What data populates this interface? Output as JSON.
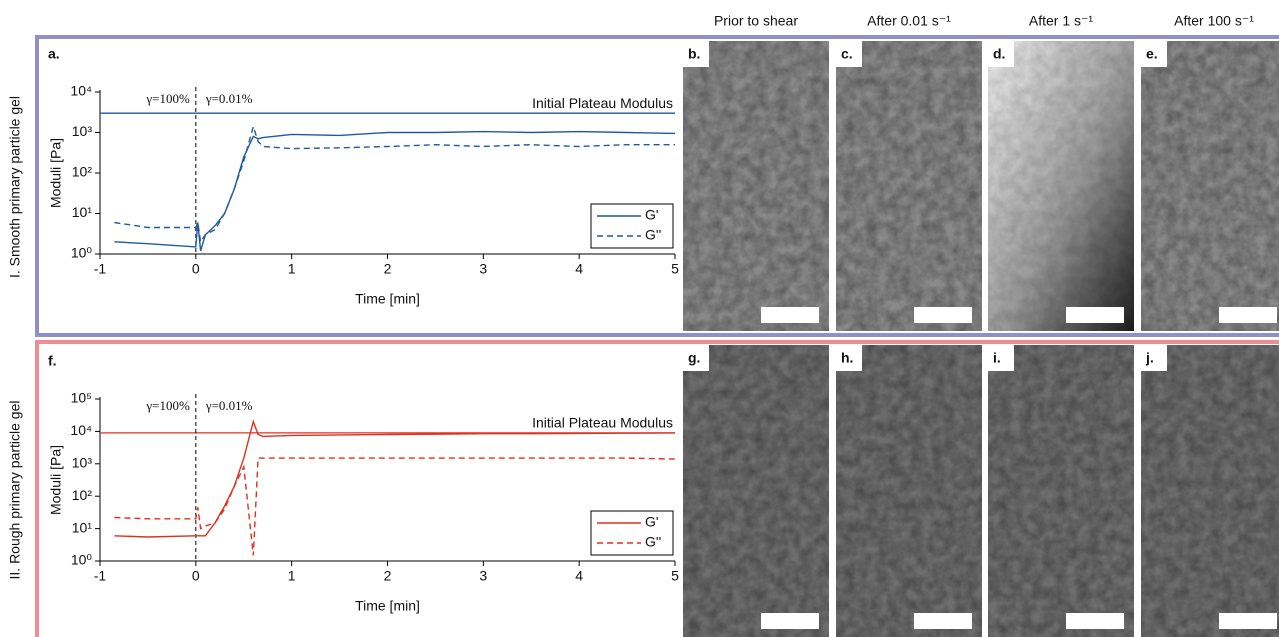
{
  "chart_data": [
    {
      "type": "line",
      "panel": "a.",
      "xlabel": "Time [min]",
      "ylabel": "Moduli [Pa]",
      "log_y": true,
      "xlim": [
        -1,
        5
      ],
      "xticks": [
        -1,
        0,
        1,
        2,
        3,
        4,
        5
      ],
      "ylim": [
        1,
        10000
      ],
      "yticks": [
        {
          "value": 1,
          "label": "10⁰"
        },
        {
          "value": 10,
          "label": "10¹"
        },
        {
          "value": 100,
          "label": "10²"
        },
        {
          "value": 1000,
          "label": "10³"
        },
        {
          "value": 10000,
          "label": "10⁴"
        }
      ],
      "reference_line": {
        "value": 3000,
        "label": "Initial Plateau Modulus"
      },
      "vline": 0,
      "annotations": [
        "γ=100%",
        "γ=0.01%"
      ],
      "legend": "lower right",
      "x": [
        -0.85,
        -0.5,
        0,
        0.02,
        0.05,
        0.1,
        0.2,
        0.3,
        0.4,
        0.5,
        0.6,
        0.65,
        0.7,
        1.0,
        1.5,
        2.0,
        2.5,
        3.0,
        3.5,
        4.0,
        4.5,
        5.0
      ],
      "series": [
        {
          "name": "G'",
          "color": "#1f5a9a",
          "dash": "solid",
          "values": [
            2,
            1.8,
            1.5,
            6,
            1.2,
            3,
            5,
            10,
            40,
            250,
            800,
            700,
            750,
            900,
            850,
            1000,
            1000,
            1050,
            1000,
            1050,
            1000,
            950
          ]
        },
        {
          "name": "G''",
          "color": "#1f5a9a",
          "dash": "dashed",
          "values": [
            6,
            4.5,
            4.5,
            6,
            2,
            3,
            4,
            10,
            40,
            200,
            1400,
            600,
            450,
            400,
            420,
            450,
            500,
            450,
            500,
            450,
            500,
            500
          ]
        }
      ]
    },
    {
      "type": "line",
      "panel": "f.",
      "xlabel": "Time [min]",
      "ylabel": "Moduli [Pa]",
      "log_y": true,
      "xlim": [
        -1,
        5
      ],
      "xticks": [
        -1,
        0,
        1,
        2,
        3,
        4,
        5
      ],
      "ylim": [
        1,
        100000
      ],
      "yticks": [
        {
          "value": 1,
          "label": "10⁰"
        },
        {
          "value": 10,
          "label": "10¹"
        },
        {
          "value": 100,
          "label": "10²"
        },
        {
          "value": 1000,
          "label": "10³"
        },
        {
          "value": 10000,
          "label": "10⁴"
        },
        {
          "value": 100000,
          "label": "10⁵"
        }
      ],
      "reference_line": {
        "value": 9000,
        "label": "Initial Plateau Modulus"
      },
      "vline": 0,
      "annotations": [
        "γ=100%",
        "γ=0.01%"
      ],
      "legend": "lower right",
      "x": [
        -0.85,
        -0.5,
        0,
        0.02,
        0.05,
        0.1,
        0.2,
        0.3,
        0.4,
        0.5,
        0.6,
        0.65,
        0.7,
        1.0,
        1.5,
        2.0,
        2.5,
        3.0,
        3.5,
        4.0,
        4.5,
        5.0
      ],
      "series": [
        {
          "name": "G'",
          "color": "#e0301e",
          "dash": "solid",
          "values": [
            6,
            5.5,
            6,
            6,
            6,
            6,
            15,
            50,
            200,
            1500,
            20000,
            8000,
            7000,
            7500,
            7800,
            8000,
            8200,
            8500,
            8500,
            8700,
            8800,
            9000
          ]
        },
        {
          "name": "G''",
          "color": "#e0301e",
          "dash": "dashed",
          "values": [
            22,
            20,
            20,
            45,
            10,
            12,
            15,
            40,
            200,
            800,
            1.5,
            1500,
            1500,
            1500,
            1500,
            1500,
            1500,
            1500,
            1500,
            1500,
            1500,
            1400
          ]
        }
      ]
    }
  ],
  "figure": {
    "columns": [
      "Prior to shear",
      "After 0.01 s⁻¹",
      "After 1 s⁻¹",
      "After 100 s⁻¹"
    ],
    "rows": [
      "I. Smooth primary particle gel",
      "II. Rough primary particle gel"
    ],
    "image_panels": [
      [
        "b.",
        "c.",
        "d.",
        "e."
      ],
      [
        "g.",
        "h.",
        "i.",
        "j."
      ]
    ]
  }
}
